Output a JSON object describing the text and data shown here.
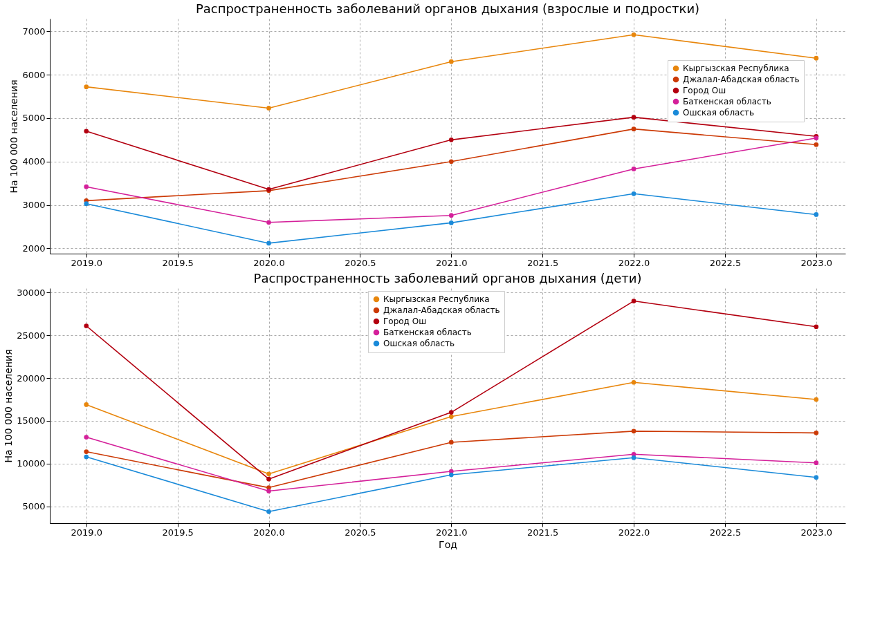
{
  "chart_data": [
    {
      "type": "line",
      "title": "Распространенность заболеваний органов дыхания (взрослые и подростки)",
      "ylabel": "На 100 000 населения",
      "x": [
        2019,
        2020,
        2021,
        2022,
        2023
      ],
      "series": [
        {
          "name": "Кыргызская Республика",
          "color": "#e8860c",
          "values": [
            5720,
            5230,
            6300,
            6920,
            6380
          ]
        },
        {
          "name": "Джалал-Абадская область",
          "color": "#cc3a06",
          "values": [
            3100,
            3330,
            4000,
            4750,
            4390
          ]
        },
        {
          "name": "Город Ош",
          "color": "#b30010",
          "values": [
            4700,
            3360,
            4500,
            5020,
            4580
          ]
        },
        {
          "name": "Баткенская область",
          "color": "#d4209a",
          "values": [
            3420,
            2600,
            2760,
            3830,
            4540
          ]
        },
        {
          "name": "Ошская область",
          "color": "#1a8ad9",
          "values": [
            3030,
            2120,
            2590,
            3260,
            2780
          ]
        }
      ],
      "xlim": [
        2018.8,
        2023.16
      ],
      "ylim": [
        1880,
        7290
      ],
      "xticks": [
        {
          "value": 2019,
          "label": "2019.0"
        },
        {
          "value": 2019.5,
          "label": "2019.5"
        },
        {
          "value": 2020,
          "label": "2020.0"
        },
        {
          "value": 2020.5,
          "label": "2020.5"
        },
        {
          "value": 2021,
          "label": "2021.0"
        },
        {
          "value": 2021.5,
          "label": "2021.5"
        },
        {
          "value": 2022,
          "label": "2022.0"
        },
        {
          "value": 2022.5,
          "label": "2022.5"
        },
        {
          "value": 2023,
          "label": "2023.0"
        }
      ],
      "yticks": [
        2000,
        3000,
        4000,
        5000,
        6000,
        7000
      ],
      "grid": true,
      "legend": "top right",
      "marker": "circle",
      "line_style": "solid"
    },
    {
      "type": "line",
      "title": "Распространенность заболеваний органов дыхания (дети)",
      "xlabel": "Год",
      "ylabel": "На 100 000 населения",
      "x": [
        2019,
        2020,
        2021,
        2022,
        2023
      ],
      "series": [
        {
          "name": "Кыргызская Республика",
          "color": "#e8860c",
          "values": [
            16900,
            8800,
            15500,
            19500,
            17500
          ]
        },
        {
          "name": "Джалал-Абадская область",
          "color": "#cc3a06",
          "values": [
            11400,
            7200,
            12500,
            13800,
            13600
          ]
        },
        {
          "name": "Город Ош",
          "color": "#b30010",
          "values": [
            26100,
            8200,
            16000,
            29000,
            26000
          ]
        },
        {
          "name": "Баткенская область",
          "color": "#d4209a",
          "values": [
            13100,
            6800,
            9100,
            11100,
            10100
          ]
        },
        {
          "name": "Ошская область",
          "color": "#1a8ad9",
          "values": [
            10800,
            4400,
            8700,
            10700,
            8400
          ]
        }
      ],
      "xlim": [
        2018.8,
        2023.16
      ],
      "ylim": [
        3050,
        30500
      ],
      "xticks": [
        {
          "value": 2019,
          "label": "2019.0"
        },
        {
          "value": 2019.5,
          "label": "2019.5"
        },
        {
          "value": 2020,
          "label": "2020.0"
        },
        {
          "value": 2020.5,
          "label": "2020.5"
        },
        {
          "value": 2021,
          "label": "2021.0"
        },
        {
          "value": 2021.5,
          "label": "2021.5"
        },
        {
          "value": 2022,
          "label": "2022.0"
        },
        {
          "value": 2022.5,
          "label": "2022.5"
        },
        {
          "value": 2023,
          "label": "2023.0"
        }
      ],
      "yticks": [
        5000,
        10000,
        15000,
        20000,
        25000,
        30000
      ],
      "grid": true,
      "legend": "top",
      "marker": "circle",
      "line_style": "solid"
    }
  ]
}
